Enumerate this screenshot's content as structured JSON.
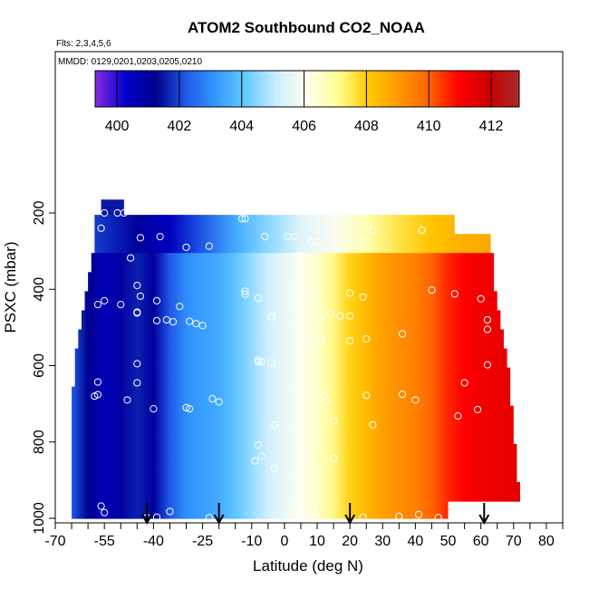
{
  "chart_data": {
    "type": "heatmap",
    "title": "ATOM2 Southbound CO2_NOAA",
    "notes": [
      "Flts: 2,3,4,5,6",
      "MMDD: 0129,0201,0203,0205,0210"
    ],
    "xlabel": "Latitude (deg N)",
    "ylabel": "PSXC (mbar)",
    "xlim": [
      -70,
      85
    ],
    "ylim": [
      1000,
      80
    ],
    "y_reversed": true,
    "x_tick_labels": [
      -70,
      -55,
      -40,
      -25,
      -10,
      0,
      10,
      20,
      30,
      40,
      50,
      60,
      70,
      80
    ],
    "x_minor_ticks": [
      -65,
      -60,
      -50,
      -45,
      -35,
      -30,
      -20,
      -15,
      -5,
      5,
      15,
      25,
      35,
      45,
      55,
      65,
      75,
      85
    ],
    "y_tick_labels": [
      200,
      400,
      600,
      800,
      1000
    ],
    "colorbar": {
      "ticks": [
        400,
        402,
        404,
        406,
        408,
        410,
        412
      ],
      "range": [
        399.3,
        412.9
      ],
      "colors": [
        "#8a2be2",
        "#0000cd",
        "#00008b",
        "#1e5ae8",
        "#3399ff",
        "#66ccff",
        "#cceeff",
        "#fffff0",
        "#ffff99",
        "#ffcc00",
        "#ff9900",
        "#ff6600",
        "#ff0000",
        "#cc0000",
        "#a52a2a"
      ]
    },
    "arrows_latitude": [
      -42,
      -20,
      20,
      61
    ],
    "layers": [
      {
        "p_top": 165,
        "p_bot": 205,
        "lat_min": -56,
        "lat_max": -49
      },
      {
        "p_top": 205,
        "p_bot": 255,
        "lat_min": -58,
        "lat_max": 52
      },
      {
        "p_top": 255,
        "p_bot": 305,
        "lat_min": -58,
        "lat_max": 63
      },
      {
        "p_top": 305,
        "p_bot": 355,
        "lat_min": -59,
        "lat_max": 64
      },
      {
        "p_top": 355,
        "p_bot": 405,
        "lat_min": -60,
        "lat_max": 64
      },
      {
        "p_top": 405,
        "p_bot": 455,
        "lat_min": -61,
        "lat_max": 65
      },
      {
        "p_top": 455,
        "p_bot": 505,
        "lat_min": -62,
        "lat_max": 66
      },
      {
        "p_top": 505,
        "p_bot": 555,
        "lat_min": -63,
        "lat_max": 67
      },
      {
        "p_top": 555,
        "p_bot": 605,
        "lat_min": -64,
        "lat_max": 68
      },
      {
        "p_top": 605,
        "p_bot": 655,
        "lat_min": -64,
        "lat_max": 69
      },
      {
        "p_top": 655,
        "p_bot": 705,
        "lat_min": -65,
        "lat_max": 69
      },
      {
        "p_top": 705,
        "p_bot": 755,
        "lat_min": -65,
        "lat_max": 70
      },
      {
        "p_top": 755,
        "p_bot": 805,
        "lat_min": -65,
        "lat_max": 70
      },
      {
        "p_top": 805,
        "p_bot": 855,
        "lat_min": -65,
        "lat_max": 71
      },
      {
        "p_top": 855,
        "p_bot": 905,
        "lat_min": -65,
        "lat_max": 71
      },
      {
        "p_top": 905,
        "p_bot": 955,
        "lat_min": -65,
        "lat_max": 72
      },
      {
        "p_top": 955,
        "p_bot": 1000,
        "lat_min": -65,
        "lat_max": 50
      }
    ],
    "field_profile": [
      {
        "lat": -65,
        "value": 402.2
      },
      {
        "lat": -60,
        "value": 401.2
      },
      {
        "lat": -55,
        "value": 400.6
      },
      {
        "lat": -50,
        "value": 400.9
      },
      {
        "lat": -45,
        "value": 401.6
      },
      {
        "lat": -40,
        "value": 401.0
      },
      {
        "lat": -35,
        "value": 402.2
      },
      {
        "lat": -30,
        "value": 403.0
      },
      {
        "lat": -25,
        "value": 403.3
      },
      {
        "lat": -20,
        "value": 403.5
      },
      {
        "lat": -15,
        "value": 404.0
      },
      {
        "lat": -10,
        "value": 404.6
      },
      {
        "lat": -5,
        "value": 405.2
      },
      {
        "lat": 0,
        "value": 405.7
      },
      {
        "lat": 5,
        "value": 406.1
      },
      {
        "lat": 10,
        "value": 406.5
      },
      {
        "lat": 15,
        "value": 407.2
      },
      {
        "lat": 20,
        "value": 407.9
      },
      {
        "lat": 25,
        "value": 408.4
      },
      {
        "lat": 30,
        "value": 408.9
      },
      {
        "lat": 35,
        "value": 409.2
      },
      {
        "lat": 40,
        "value": 409.5
      },
      {
        "lat": 45,
        "value": 410.0
      },
      {
        "lat": 50,
        "value": 410.6
      },
      {
        "lat": 55,
        "value": 411.0
      },
      {
        "lat": 60,
        "value": 411.2
      },
      {
        "lat": 65,
        "value": 411.3
      },
      {
        "lat": 72,
        "value": 411.5
      }
    ],
    "field_upper_layer_profile": [
      {
        "lat": -60,
        "value": 402.0
      },
      {
        "lat": -45,
        "value": 401.0
      },
      {
        "lat": -35,
        "value": 400.5
      },
      {
        "lat": -25,
        "value": 402.2
      },
      {
        "lat": -15,
        "value": 403.5
      },
      {
        "lat": -5,
        "value": 404.5
      },
      {
        "lat": 5,
        "value": 405.5
      },
      {
        "lat": 15,
        "value": 406.0
      },
      {
        "lat": 25,
        "value": 406.8
      },
      {
        "lat": 35,
        "value": 407.6
      },
      {
        "lat": 45,
        "value": 408.2
      },
      {
        "lat": 55,
        "value": 408.6
      },
      {
        "lat": 65,
        "value": 408.8
      }
    ],
    "sample_points": [
      {
        "lat": -55,
        "p": 200
      },
      {
        "lat": -51,
        "p": 200
      },
      {
        "lat": -49,
        "p": 200
      },
      {
        "lat": -56,
        "p": 240
      },
      {
        "lat": -44,
        "p": 265
      },
      {
        "lat": -38,
        "p": 262
      },
      {
        "lat": -30,
        "p": 290
      },
      {
        "lat": -23,
        "p": 287
      },
      {
        "lat": -13,
        "p": 215
      },
      {
        "lat": -12,
        "p": 215
      },
      {
        "lat": -6,
        "p": 262
      },
      {
        "lat": 1,
        "p": 262
      },
      {
        "lat": 3,
        "p": 262
      },
      {
        "lat": 8,
        "p": 275
      },
      {
        "lat": 10,
        "p": 275
      },
      {
        "lat": 24,
        "p": 275
      },
      {
        "lat": 27,
        "p": 245
      },
      {
        "lat": 42,
        "p": 245
      },
      {
        "lat": 5,
        "p": 312
      },
      {
        "lat": -47,
        "p": 318
      },
      {
        "lat": -45,
        "p": 390
      },
      {
        "lat": -44,
        "p": 418
      },
      {
        "lat": -55,
        "p": 430
      },
      {
        "lat": -57,
        "p": 440
      },
      {
        "lat": -50,
        "p": 440
      },
      {
        "lat": -45,
        "p": 460
      },
      {
        "lat": -45,
        "p": 462
      },
      {
        "lat": -39,
        "p": 430
      },
      {
        "lat": -32,
        "p": 445
      },
      {
        "lat": -12,
        "p": 405
      },
      {
        "lat": -12,
        "p": 413
      },
      {
        "lat": -8,
        "p": 423
      },
      {
        "lat": 4,
        "p": 433
      },
      {
        "lat": 10,
        "p": 410
      },
      {
        "lat": 20,
        "p": 410
      },
      {
        "lat": 24,
        "p": 420
      },
      {
        "lat": -39,
        "p": 482
      },
      {
        "lat": -36,
        "p": 480
      },
      {
        "lat": -34,
        "p": 485
      },
      {
        "lat": -29,
        "p": 484
      },
      {
        "lat": -27,
        "p": 490
      },
      {
        "lat": -25,
        "p": 495
      },
      {
        "lat": -4,
        "p": 472
      },
      {
        "lat": 5,
        "p": 485
      },
      {
        "lat": 11,
        "p": 475
      },
      {
        "lat": 14,
        "p": 465
      },
      {
        "lat": 17,
        "p": 470
      },
      {
        "lat": 20,
        "p": 470
      },
      {
        "lat": 20,
        "p": 535
      },
      {
        "lat": 36,
        "p": 517
      },
      {
        "lat": 45,
        "p": 402
      },
      {
        "lat": 52,
        "p": 412
      },
      {
        "lat": 60,
        "p": 425
      },
      {
        "lat": 62,
        "p": 480
      },
      {
        "lat": 62,
        "p": 505
      },
      {
        "lat": 7,
        "p": 546
      },
      {
        "lat": 11,
        "p": 530
      },
      {
        "lat": 25,
        "p": 530
      },
      {
        "lat": -8,
        "p": 585
      },
      {
        "lat": -8,
        "p": 590
      },
      {
        "lat": -7,
        "p": 590
      },
      {
        "lat": -4,
        "p": 593
      },
      {
        "lat": -45,
        "p": 595
      },
      {
        "lat": -57,
        "p": 643
      },
      {
        "lat": -45,
        "p": 645
      },
      {
        "lat": -58,
        "p": 680
      },
      {
        "lat": -57,
        "p": 676
      },
      {
        "lat": -48,
        "p": 690
      },
      {
        "lat": -40,
        "p": 713
      },
      {
        "lat": -30,
        "p": 710
      },
      {
        "lat": -29,
        "p": 713
      },
      {
        "lat": -22,
        "p": 687
      },
      {
        "lat": -20,
        "p": 695
      },
      {
        "lat": -67,
        "p": 643
      },
      {
        "lat": 5,
        "p": 705
      },
      {
        "lat": 12,
        "p": 678
      },
      {
        "lat": 13,
        "p": 693
      },
      {
        "lat": 25,
        "p": 678
      },
      {
        "lat": 36,
        "p": 675
      },
      {
        "lat": 40,
        "p": 690
      },
      {
        "lat": 55,
        "p": 645
      },
      {
        "lat": 62,
        "p": 598
      },
      {
        "lat": 59,
        "p": 715
      },
      {
        "lat": 53,
        "p": 732
      },
      {
        "lat": -3,
        "p": 755
      },
      {
        "lat": 15,
        "p": 745
      },
      {
        "lat": 27,
        "p": 755
      },
      {
        "lat": -8,
        "p": 808
      },
      {
        "lat": -7,
        "p": 838
      },
      {
        "lat": 6,
        "p": 832
      },
      {
        "lat": -9,
        "p": 850
      },
      {
        "lat": -3,
        "p": 870
      },
      {
        "lat": 15,
        "p": 843
      },
      {
        "lat": -67,
        "p": 975
      },
      {
        "lat": -56,
        "p": 968
      },
      {
        "lat": -55,
        "p": 985
      },
      {
        "lat": -42,
        "p": 998
      },
      {
        "lat": -39,
        "p": 997
      },
      {
        "lat": -35,
        "p": 982
      },
      {
        "lat": -23,
        "p": 998
      },
      {
        "lat": 5,
        "p": 983
      },
      {
        "lat": 9,
        "p": 983
      },
      {
        "lat": 5,
        "p": 987
      },
      {
        "lat": 24,
        "p": 997
      },
      {
        "lat": 35,
        "p": 995
      },
      {
        "lat": 41,
        "p": 990
      },
      {
        "lat": 47,
        "p": 998
      }
    ]
  }
}
